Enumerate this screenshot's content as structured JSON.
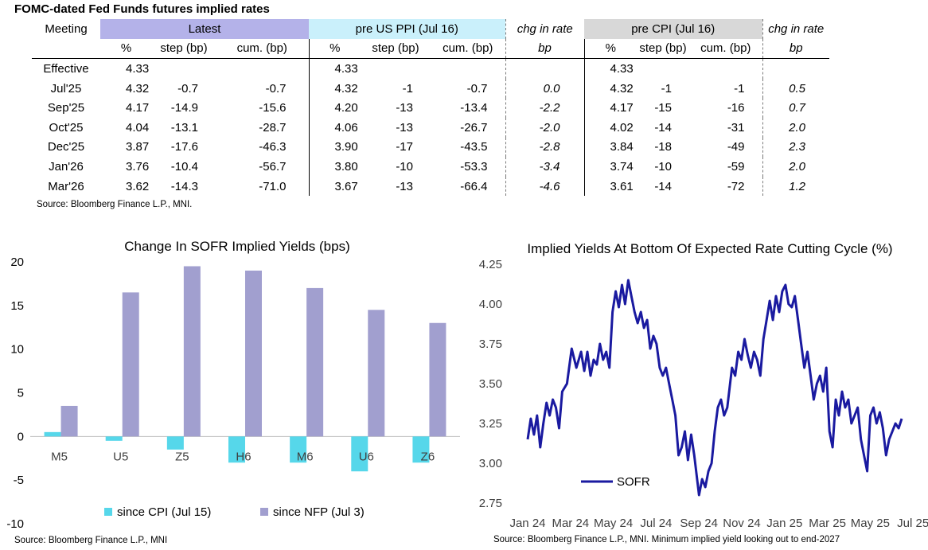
{
  "table": {
    "title": "FOMC-dated Fed Funds futures implied rates",
    "meeting_label": "Meeting",
    "groups": {
      "latest": "Latest",
      "ppi": "pre US PPI (Jul 16)",
      "chg1": "chg in rate",
      "cpi": "pre CPI (Jul 16)",
      "chg2": "chg in rate"
    },
    "subheaders": {
      "pct": "%",
      "step": "step (bp)",
      "cum": "cum. (bp)",
      "bp": "bp"
    },
    "rows": [
      {
        "meeting": "Effective",
        "latest_pct": "4.33",
        "latest_step": "",
        "latest_cum": "",
        "ppi_pct": "4.33",
        "ppi_step": "",
        "ppi_cum": "",
        "chg1": "",
        "cpi_pct": "4.33",
        "cpi_step": "",
        "cpi_cum": "",
        "chg2": ""
      },
      {
        "meeting": "Jul'25",
        "latest_pct": "4.32",
        "latest_step": "-0.7",
        "latest_cum": "-0.7",
        "ppi_pct": "4.32",
        "ppi_step": "-1",
        "ppi_cum": "-0.7",
        "chg1": "0.0",
        "cpi_pct": "4.32",
        "cpi_step": "-1",
        "cpi_cum": "-1",
        "chg2": "0.5"
      },
      {
        "meeting": "Sep'25",
        "latest_pct": "4.17",
        "latest_step": "-14.9",
        "latest_cum": "-15.6",
        "ppi_pct": "4.20",
        "ppi_step": "-13",
        "ppi_cum": "-13.4",
        "chg1": "-2.2",
        "cpi_pct": "4.17",
        "cpi_step": "-15",
        "cpi_cum": "-16",
        "chg2": "0.7"
      },
      {
        "meeting": "Oct'25",
        "latest_pct": "4.04",
        "latest_step": "-13.1",
        "latest_cum": "-28.7",
        "ppi_pct": "4.06",
        "ppi_step": "-13",
        "ppi_cum": "-26.7",
        "chg1": "-2.0",
        "cpi_pct": "4.02",
        "cpi_step": "-14",
        "cpi_cum": "-31",
        "chg2": "2.0"
      },
      {
        "meeting": "Dec'25",
        "latest_pct": "3.87",
        "latest_step": "-17.6",
        "latest_cum": "-46.3",
        "ppi_pct": "3.90",
        "ppi_step": "-17",
        "ppi_cum": "-43.5",
        "chg1": "-2.8",
        "cpi_pct": "3.84",
        "cpi_step": "-18",
        "cpi_cum": "-49",
        "chg2": "2.3"
      },
      {
        "meeting": "Jan'26",
        "latest_pct": "3.76",
        "latest_step": "-10.4",
        "latest_cum": "-56.7",
        "ppi_pct": "3.80",
        "ppi_step": "-10",
        "ppi_cum": "-53.3",
        "chg1": "-3.4",
        "cpi_pct": "3.74",
        "cpi_step": "-10",
        "cpi_cum": "-59",
        "chg2": "2.0"
      },
      {
        "meeting": "Mar'26",
        "latest_pct": "3.62",
        "latest_step": "-14.3",
        "latest_cum": "-71.0",
        "ppi_pct": "3.67",
        "ppi_step": "-13",
        "ppi_cum": "-66.4",
        "chg1": "-4.6",
        "cpi_pct": "3.61",
        "cpi_step": "-14",
        "cpi_cum": "-72",
        "chg2": "1.2"
      }
    ],
    "source": "Source: Bloomberg Finance L.P., MNI."
  },
  "chart_data": [
    {
      "type": "bar",
      "title": "Change In SOFR Implied Yields (bps)",
      "categories": [
        "M5",
        "U5",
        "Z5",
        "H6",
        "M6",
        "U6",
        "Z6"
      ],
      "series": [
        {
          "name": "since CPI (Jul 15)",
          "color": "#56d7ea",
          "values": [
            0.5,
            -0.5,
            -1.5,
            -3.0,
            -3.0,
            -4.0,
            -3.0
          ]
        },
        {
          "name": "since NFP (Jul 3)",
          "color": "#a19fcf",
          "values": [
            3.5,
            16.5,
            19.5,
            19.0,
            17.0,
            14.5,
            13.0
          ]
        }
      ],
      "ylim": [
        -10,
        20
      ],
      "yticks": [
        "-10",
        "-5",
        "0",
        "5",
        "10",
        "15",
        "20"
      ],
      "xlabel": "",
      "ylabel": "",
      "legend": "bottom",
      "source": "Source: Bloomberg Finance L.P., MNI"
    },
    {
      "type": "line",
      "title": "Implied Yields At Bottom Of Expected Rate Cutting Cycle (%)",
      "x_labels": [
        "Jan 24",
        "Mar 24",
        "May 24",
        "Jul 24",
        "Sep 24",
        "Nov 24",
        "Jan 25",
        "Mar 25",
        "May 25",
        "Jul 25"
      ],
      "yticks": [
        "2.75",
        "3.00",
        "3.25",
        "3.50",
        "3.75",
        "4.00",
        "4.25"
      ],
      "ylim": [
        2.75,
        4.25
      ],
      "series": [
        {
          "name": "SOFR",
          "color": "#1a1aa0",
          "points": [
            [
              0,
              3.15
            ],
            [
              0.1,
              3.28
            ],
            [
              0.2,
              3.18
            ],
            [
              0.3,
              3.3
            ],
            [
              0.4,
              3.1
            ],
            [
              0.5,
              3.25
            ],
            [
              0.6,
              3.38
            ],
            [
              0.7,
              3.3
            ],
            [
              0.8,
              3.4
            ],
            [
              0.9,
              3.35
            ],
            [
              1.0,
              3.22
            ],
            [
              1.1,
              3.45
            ],
            [
              1.25,
              3.5
            ],
            [
              1.4,
              3.72
            ],
            [
              1.55,
              3.6
            ],
            [
              1.7,
              3.7
            ],
            [
              1.8,
              3.58
            ],
            [
              1.9,
              3.7
            ],
            [
              2.0,
              3.55
            ],
            [
              2.1,
              3.65
            ],
            [
              2.2,
              3.62
            ],
            [
              2.3,
              3.75
            ],
            [
              2.4,
              3.65
            ],
            [
              2.5,
              3.7
            ],
            [
              2.6,
              3.6
            ],
            [
              2.7,
              3.95
            ],
            [
              2.8,
              4.08
            ],
            [
              2.9,
              3.98
            ],
            [
              3.0,
              4.12
            ],
            [
              3.1,
              4.0
            ],
            [
              3.2,
              4.15
            ],
            [
              3.3,
              4.05
            ],
            [
              3.4,
              3.95
            ],
            [
              3.5,
              3.88
            ],
            [
              3.6,
              3.95
            ],
            [
              3.7,
              3.85
            ],
            [
              3.8,
              3.9
            ],
            [
              3.9,
              3.72
            ],
            [
              4.0,
              3.8
            ],
            [
              4.1,
              3.75
            ],
            [
              4.2,
              3.6
            ],
            [
              4.3,
              3.55
            ],
            [
              4.4,
              3.6
            ],
            [
              4.5,
              3.5
            ],
            [
              4.6,
              3.4
            ],
            [
              4.7,
              3.3
            ],
            [
              4.8,
              3.05
            ],
            [
              4.9,
              3.1
            ],
            [
              5.0,
              3.2
            ],
            [
              5.1,
              3.02
            ],
            [
              5.2,
              3.18
            ],
            [
              5.3,
              3.05
            ],
            [
              5.45,
              2.8
            ],
            [
              5.55,
              2.9
            ],
            [
              5.65,
              2.85
            ],
            [
              5.75,
              2.95
            ],
            [
              5.85,
              3.0
            ],
            [
              5.95,
              3.2
            ],
            [
              6.05,
              3.35
            ],
            [
              6.15,
              3.4
            ],
            [
              6.25,
              3.3
            ],
            [
              6.35,
              3.35
            ],
            [
              6.5,
              3.6
            ],
            [
              6.6,
              3.55
            ],
            [
              6.7,
              3.7
            ],
            [
              6.8,
              3.65
            ],
            [
              6.9,
              3.78
            ],
            [
              7.0,
              3.68
            ],
            [
              7.1,
              3.6
            ],
            [
              7.2,
              3.7
            ],
            [
              7.3,
              3.65
            ],
            [
              7.4,
              3.55
            ],
            [
              7.5,
              3.78
            ],
            [
              7.6,
              3.9
            ],
            [
              7.7,
              4.02
            ],
            [
              7.8,
              3.9
            ],
            [
              7.9,
              4.05
            ],
            [
              8.0,
              3.95
            ],
            [
              8.1,
              4.08
            ],
            [
              8.2,
              4.12
            ],
            [
              8.3,
              4.0
            ],
            [
              8.4,
              3.98
            ],
            [
              8.5,
              4.05
            ],
            [
              8.6,
              3.9
            ],
            [
              8.7,
              3.75
            ],
            [
              8.8,
              3.6
            ],
            [
              8.9,
              3.7
            ],
            [
              9.0,
              3.55
            ],
            [
              9.1,
              3.4
            ],
            [
              9.2,
              3.5
            ],
            [
              9.3,
              3.55
            ],
            [
              9.4,
              3.45
            ],
            [
              9.5,
              3.6
            ],
            [
              9.6,
              3.2
            ],
            [
              9.7,
              3.1
            ],
            [
              9.8,
              3.4
            ],
            [
              9.9,
              3.3
            ],
            [
              10.0,
              3.45
            ],
            [
              10.1,
              3.35
            ],
            [
              10.2,
              3.4
            ],
            [
              10.3,
              3.25
            ],
            [
              10.4,
              3.3
            ],
            [
              10.5,
              3.35
            ],
            [
              10.6,
              3.15
            ],
            [
              10.7,
              3.05
            ],
            [
              10.8,
              2.95
            ],
            [
              10.9,
              3.3
            ],
            [
              11.0,
              3.35
            ],
            [
              11.1,
              3.25
            ],
            [
              11.2,
              3.32
            ],
            [
              11.3,
              3.22
            ],
            [
              11.4,
              3.05
            ],
            [
              11.5,
              3.15
            ],
            [
              11.6,
              3.2
            ],
            [
              11.7,
              3.25
            ],
            [
              11.8,
              3.22
            ],
            [
              11.9,
              3.28
            ]
          ]
        }
      ],
      "legend": "bottom-left",
      "source": "Source: Bloomberg Finance L.P., MNI. Minimum implied yield looking out to end-2027"
    }
  ]
}
